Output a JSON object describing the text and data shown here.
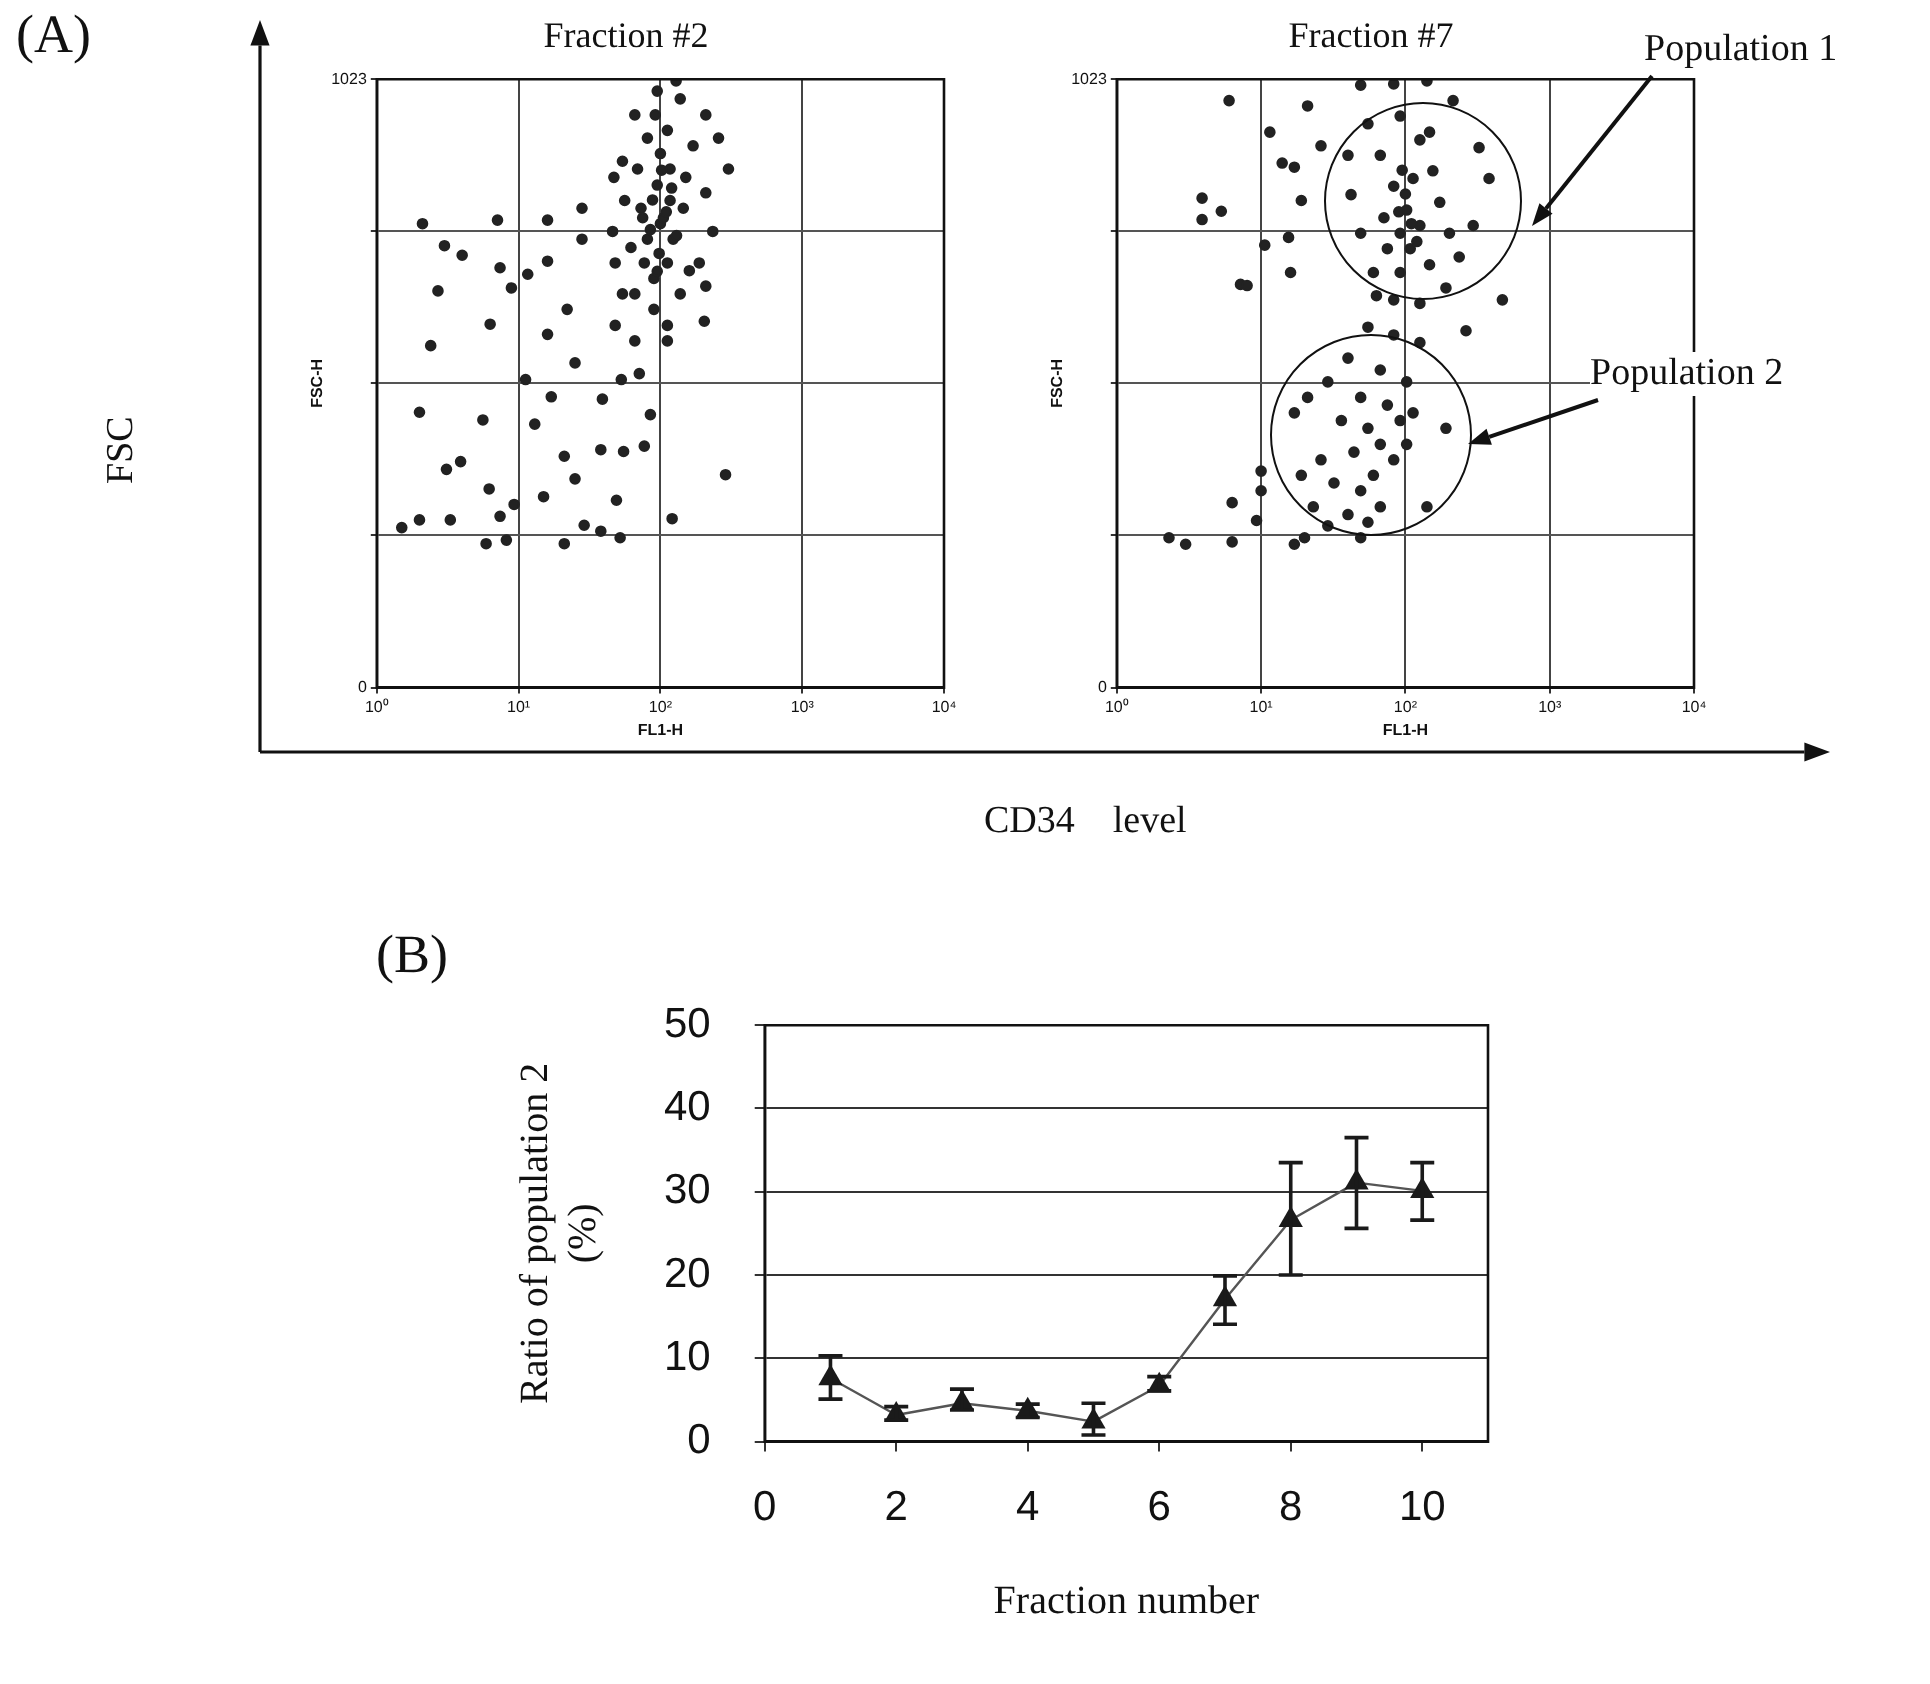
{
  "chart_data": [
    {
      "type": "scatter",
      "title": "Fraction #2",
      "xlabel": "FL1-H",
      "ylabel": "FSC-H",
      "log": "x",
      "xlim": [
        1,
        10000
      ],
      "xticks": [
        {
          "value": 1,
          "label": "10⁰"
        },
        {
          "value": 10,
          "label": "10¹"
        },
        {
          "value": 100,
          "label": "10²"
        },
        {
          "value": 1000,
          "label": "10³"
        },
        {
          "value": 10000,
          "label": "10⁴"
        }
      ],
      "ylim": [
        0,
        1023
      ],
      "yticks": [
        0,
        {
          "value": 256,
          "label": null
        },
        {
          "value": 512,
          "label": null
        },
        {
          "value": 768,
          "label": null
        },
        1023
      ],
      "grid": true,
      "marker": "circle",
      "annotations": [
        "(A)",
        "FSC",
        "CD34　level"
      ],
      "x": [
        2.1,
        3.0,
        4.0,
        2.7,
        2.4,
        6.3,
        7.4,
        7.1,
        8.9,
        2.0,
        5.6,
        3.1,
        3.9,
        6.2,
        7.4,
        9.3,
        3.3,
        1.5,
        2.0,
        5.9,
        8.2,
        11.6,
        16,
        11.2,
        13,
        15,
        17,
        16,
        21,
        25,
        22,
        25,
        28,
        39,
        38,
        49,
        55,
        77,
        85,
        121,
        288,
        21,
        29,
        38,
        52,
        16,
        28,
        47,
        48,
        66,
        71,
        112,
        204,
        53,
        95,
        129,
        209,
        257,
        302,
        66,
        54,
        81,
        112,
        170,
        209,
        234,
        188,
        138,
        90,
        66,
        48,
        46,
        56,
        69,
        95,
        117,
        100,
        81,
        123,
        112,
        77,
        145,
        151,
        100,
        73,
        62,
        160,
        90,
        54,
        112,
        209,
        138,
        92,
        117,
        105,
        85,
        120,
        98,
        110,
        75,
        130,
        88,
        102,
        95
      ],
      "series": [
        {
          "color": "#222222",
          "values": [
            780,
            743,
            727,
            667,
            575,
            611,
            706,
            786,
            672,
            463,
            450,
            367,
            380,
            334,
            288,
            308,
            282,
            269,
            282,
            242,
            248,
            695,
            717,
            518,
            443,
            321,
            489,
            594,
            389,
            351,
            636,
            546,
            754,
            485,
            400,
            315,
            397,
            406,
            459,
            284,
            358,
            242,
            273,
            263,
            252,
            786,
            806,
            858,
            609,
            583,
            528,
            583,
            616,
            518,
            1003,
            1020,
            963,
            924,
            872,
            963,
            885,
            924,
            937,
            911,
            832,
            767,
            714,
            662,
            636,
            662,
            714,
            767,
            819,
            872,
            845,
            819,
            780,
            754,
            754,
            714,
            714,
            806,
            858,
            898,
            806,
            740,
            701,
            688,
            662,
            609,
            675,
            990,
            963,
            872,
            790,
            770,
            840,
            730,
            800,
            790,
            760,
            820,
            870,
            700
          ]
        }
      ]
    },
    {
      "type": "scatter",
      "title": "Fraction #7",
      "xlabel": "FL1-H",
      "ylabel": "FSC-H",
      "log": "x",
      "xlim": [
        1,
        10000
      ],
      "xticks": [
        {
          "value": 1,
          "label": "10⁰"
        },
        {
          "value": 10,
          "label": "10¹"
        },
        {
          "value": 100,
          "label": "10²"
        },
        {
          "value": 1000,
          "label": "10³"
        },
        {
          "value": 10000,
          "label": "10⁴"
        }
      ],
      "ylim": [
        0,
        1023
      ],
      "yticks": [
        0,
        {
          "value": 256,
          "label": null
        },
        {
          "value": 512,
          "label": null
        },
        {
          "value": 768,
          "label": null
        },
        1023
      ],
      "grid": true,
      "marker": "circle",
      "annotations": [
        "Population 1",
        "Population 2"
      ],
      "x": [
        6.0,
        21,
        11.5,
        3.9,
        3.9,
        5.3,
        14,
        17,
        19,
        15.5,
        10.6,
        7.2,
        8,
        16,
        26,
        470,
        263,
        10,
        10,
        6.3,
        9.3,
        2.3,
        3.0,
        6.3,
        17,
        20,
        49,
        83,
        141,
        214,
        324,
        380,
        295,
        236,
        191,
        126,
        83,
        60,
        49,
        42,
        40,
        55,
        92,
        126,
        155,
        173,
        113,
        102,
        92,
        108,
        75,
        126,
        147,
        83,
        67,
        202,
        71,
        92,
        63,
        147,
        100,
        110,
        95,
        120,
        90,
        55,
        83,
        126,
        40,
        67,
        102,
        29,
        21,
        49,
        75,
        113,
        191,
        36,
        55,
        67,
        44,
        26,
        19,
        32,
        49,
        60,
        83,
        102,
        141,
        40,
        55,
        29,
        67,
        17,
        23,
        92,
        49
      ],
      "series": [
        {
          "color": "#222222",
          "values": [
            987,
            978,
            934,
            823,
            787,
            801,
            882,
            875,
            819,
            757,
            744,
            678,
            676,
            698,
            911,
            652,
            600,
            364,
            331,
            311,
            281,
            252,
            241,
            245,
            241,
            252,
            1013,
            1015,
            1020,
            987,
            908,
            856,
            777,
            724,
            672,
            646,
            652,
            698,
            764,
            829,
            895,
            948,
            961,
            921,
            869,
            816,
            856,
            803,
            764,
            738,
            738,
            777,
            711,
            843,
            895,
            764,
            790,
            698,
            659,
            934,
            830,
            780,
            870,
            750,
            800,
            606,
            593,
            580,
            554,
            534,
            514,
            514,
            488,
            488,
            475,
            462,
            436,
            449,
            436,
            409,
            396,
            383,
            357,
            344,
            331,
            357,
            383,
            409,
            304,
            291,
            278,
            272,
            304,
            462,
            304,
            449,
            252
          ]
        }
      ]
    },
    {
      "type": "line",
      "xlabel": "Fraction number",
      "ylabel": "Ratio of population 2\n(%)",
      "xlim": [
        0,
        11
      ],
      "xticks": [
        0,
        2,
        4,
        6,
        8,
        10
      ],
      "ylim": [
        0,
        50
      ],
      "yticks": [
        0,
        10,
        20,
        30,
        40,
        50
      ],
      "grid": "y",
      "marker": "triangle",
      "annotations": [
        "(B)"
      ],
      "x": [
        1,
        2,
        3,
        4,
        5,
        6,
        7,
        8,
        9,
        10
      ],
      "series": [
        {
          "color": "#1a1a1a",
          "values": [
            7.6,
            3.2,
            4.6,
            3.7,
            2.4,
            6.7,
            17.1,
            26.6,
            31.1,
            30.1
          ],
          "errors": [
            [
              5.1,
              10.3
            ],
            [
              2.6,
              4.2
            ],
            [
              3.8,
              6.3
            ],
            [
              2.9,
              4.5
            ],
            [
              0.8,
              4.6
            ],
            [
              6.1,
              7.8
            ],
            [
              14.1,
              19.9
            ],
            [
              20,
              33.5
            ],
            [
              25.6,
              36.5
            ],
            [
              26.6,
              33.5
            ]
          ]
        }
      ]
    }
  ]
}
